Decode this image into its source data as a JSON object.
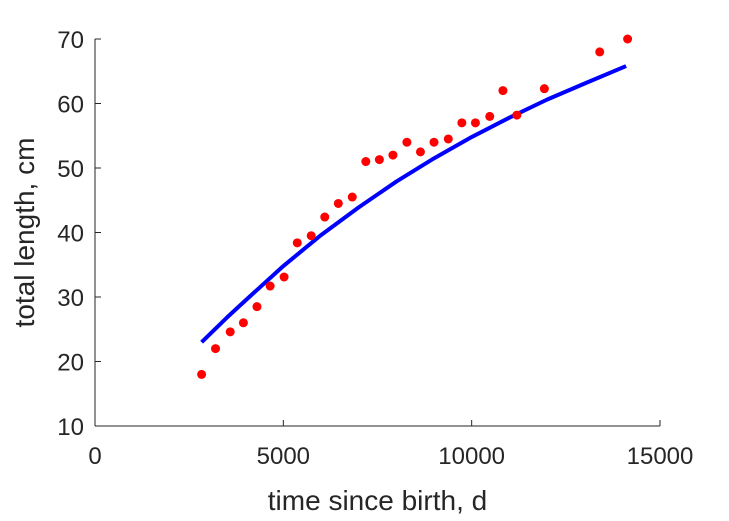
{
  "chart_data": {
    "type": "scatter",
    "title": "",
    "xlabel": "time since birth, d",
    "ylabel": "total length, cm",
    "xlim": [
      0,
      15000
    ],
    "ylim": [
      10,
      70
    ],
    "xticks": [
      0,
      5000,
      10000,
      15000
    ],
    "yticks": [
      10,
      20,
      30,
      40,
      50,
      60,
      70
    ],
    "grid": false,
    "legend": "none",
    "colors": {
      "points": "#ff0000",
      "fit": "#0000ff",
      "axes": "#262626"
    },
    "series": [
      {
        "kind": "points",
        "x": [
          2830,
          3200,
          3590,
          3940,
          4300,
          4650,
          5020,
          5370,
          5740,
          6100,
          6460,
          6830,
          7190,
          7550,
          7910,
          8280,
          8640,
          9000,
          9380,
          9740,
          10100,
          10480,
          10830,
          11200,
          11930,
          13400,
          14140
        ],
        "y": [
          18.0,
          22.0,
          24.6,
          26.0,
          28.5,
          31.7,
          33.1,
          38.4,
          39.5,
          42.4,
          44.5,
          45.5,
          51.0,
          51.3,
          52.0,
          54.0,
          52.5,
          54.0,
          54.5,
          57.0,
          57.0,
          58.0,
          62.0,
          58.2,
          62.3,
          68.0,
          70.0
        ]
      },
      {
        "kind": "line",
        "x": [
          2830,
          3500,
          4000,
          5000,
          6000,
          7000,
          8000,
          9000,
          10000,
          11000,
          12000,
          13000,
          14100
        ],
        "y": [
          23.0,
          26.8,
          29.5,
          34.8,
          39.6,
          43.9,
          47.9,
          51.5,
          54.8,
          57.8,
          60.6,
          63.1,
          65.8
        ]
      }
    ]
  }
}
